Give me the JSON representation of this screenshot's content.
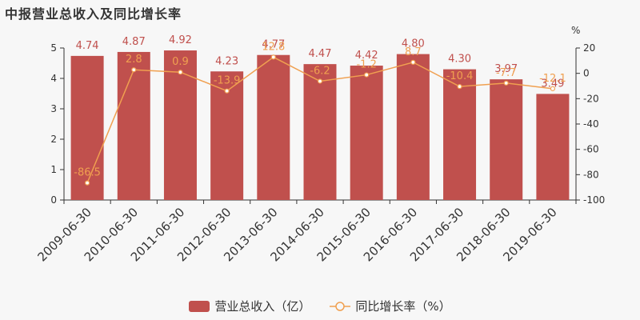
{
  "title": "中报营业总收入及同比增长率",
  "colors": {
    "bar": "#c0504d",
    "line": "#f0a050",
    "bar_label": "#c0504d",
    "line_label": "#f0a050"
  },
  "legend": {
    "bar_label": "营业总收入（亿）",
    "line_label": "同比增长率（%）"
  },
  "chart_data": {
    "type": "bar",
    "categories": [
      "2009-06-30",
      "2010-06-30",
      "2011-06-30",
      "2012-06-30",
      "2013-06-30",
      "2014-06-30",
      "2015-06-30",
      "2016-06-30",
      "2017-06-30",
      "2018-06-30",
      "2019-06-30"
    ],
    "series": [
      {
        "name": "营业总收入（亿）",
        "type": "bar",
        "axis": "left",
        "values": [
          4.74,
          4.87,
          4.92,
          4.23,
          4.77,
          4.47,
          4.42,
          4.8,
          4.3,
          3.97,
          3.49
        ],
        "labels": [
          "4.74",
          "4.87",
          "4.92",
          "4.23",
          "4.77",
          "4.47",
          "4.42",
          "4.80",
          "4.30",
          "3.97",
          "3.49"
        ]
      },
      {
        "name": "同比增长率（%）",
        "type": "line",
        "axis": "right",
        "values": [
          -86.5,
          2.8,
          0.9,
          -13.9,
          12.8,
          -6.2,
          -1.2,
          8.7,
          -10.4,
          -7.7,
          -12.1
        ],
        "labels": [
          "-86.5",
          "2.8",
          "0.9",
          "-13.9",
          "12.8",
          "-6.2",
          "-1.2",
          "8.7",
          "-10.4",
          "-7.7",
          "-12.1"
        ]
      }
    ],
    "left_axis": {
      "min": 0,
      "max": 5,
      "ticks": [
        "0",
        "1",
        "2",
        "3",
        "4",
        "5"
      ]
    },
    "right_axis": {
      "min": -100,
      "max": 20,
      "ticks": [
        "-100",
        "-80",
        "-60",
        "-40",
        "-20",
        "0",
        "20"
      ],
      "unit": "%"
    },
    "grid": false,
    "legend_position": "bottom"
  }
}
